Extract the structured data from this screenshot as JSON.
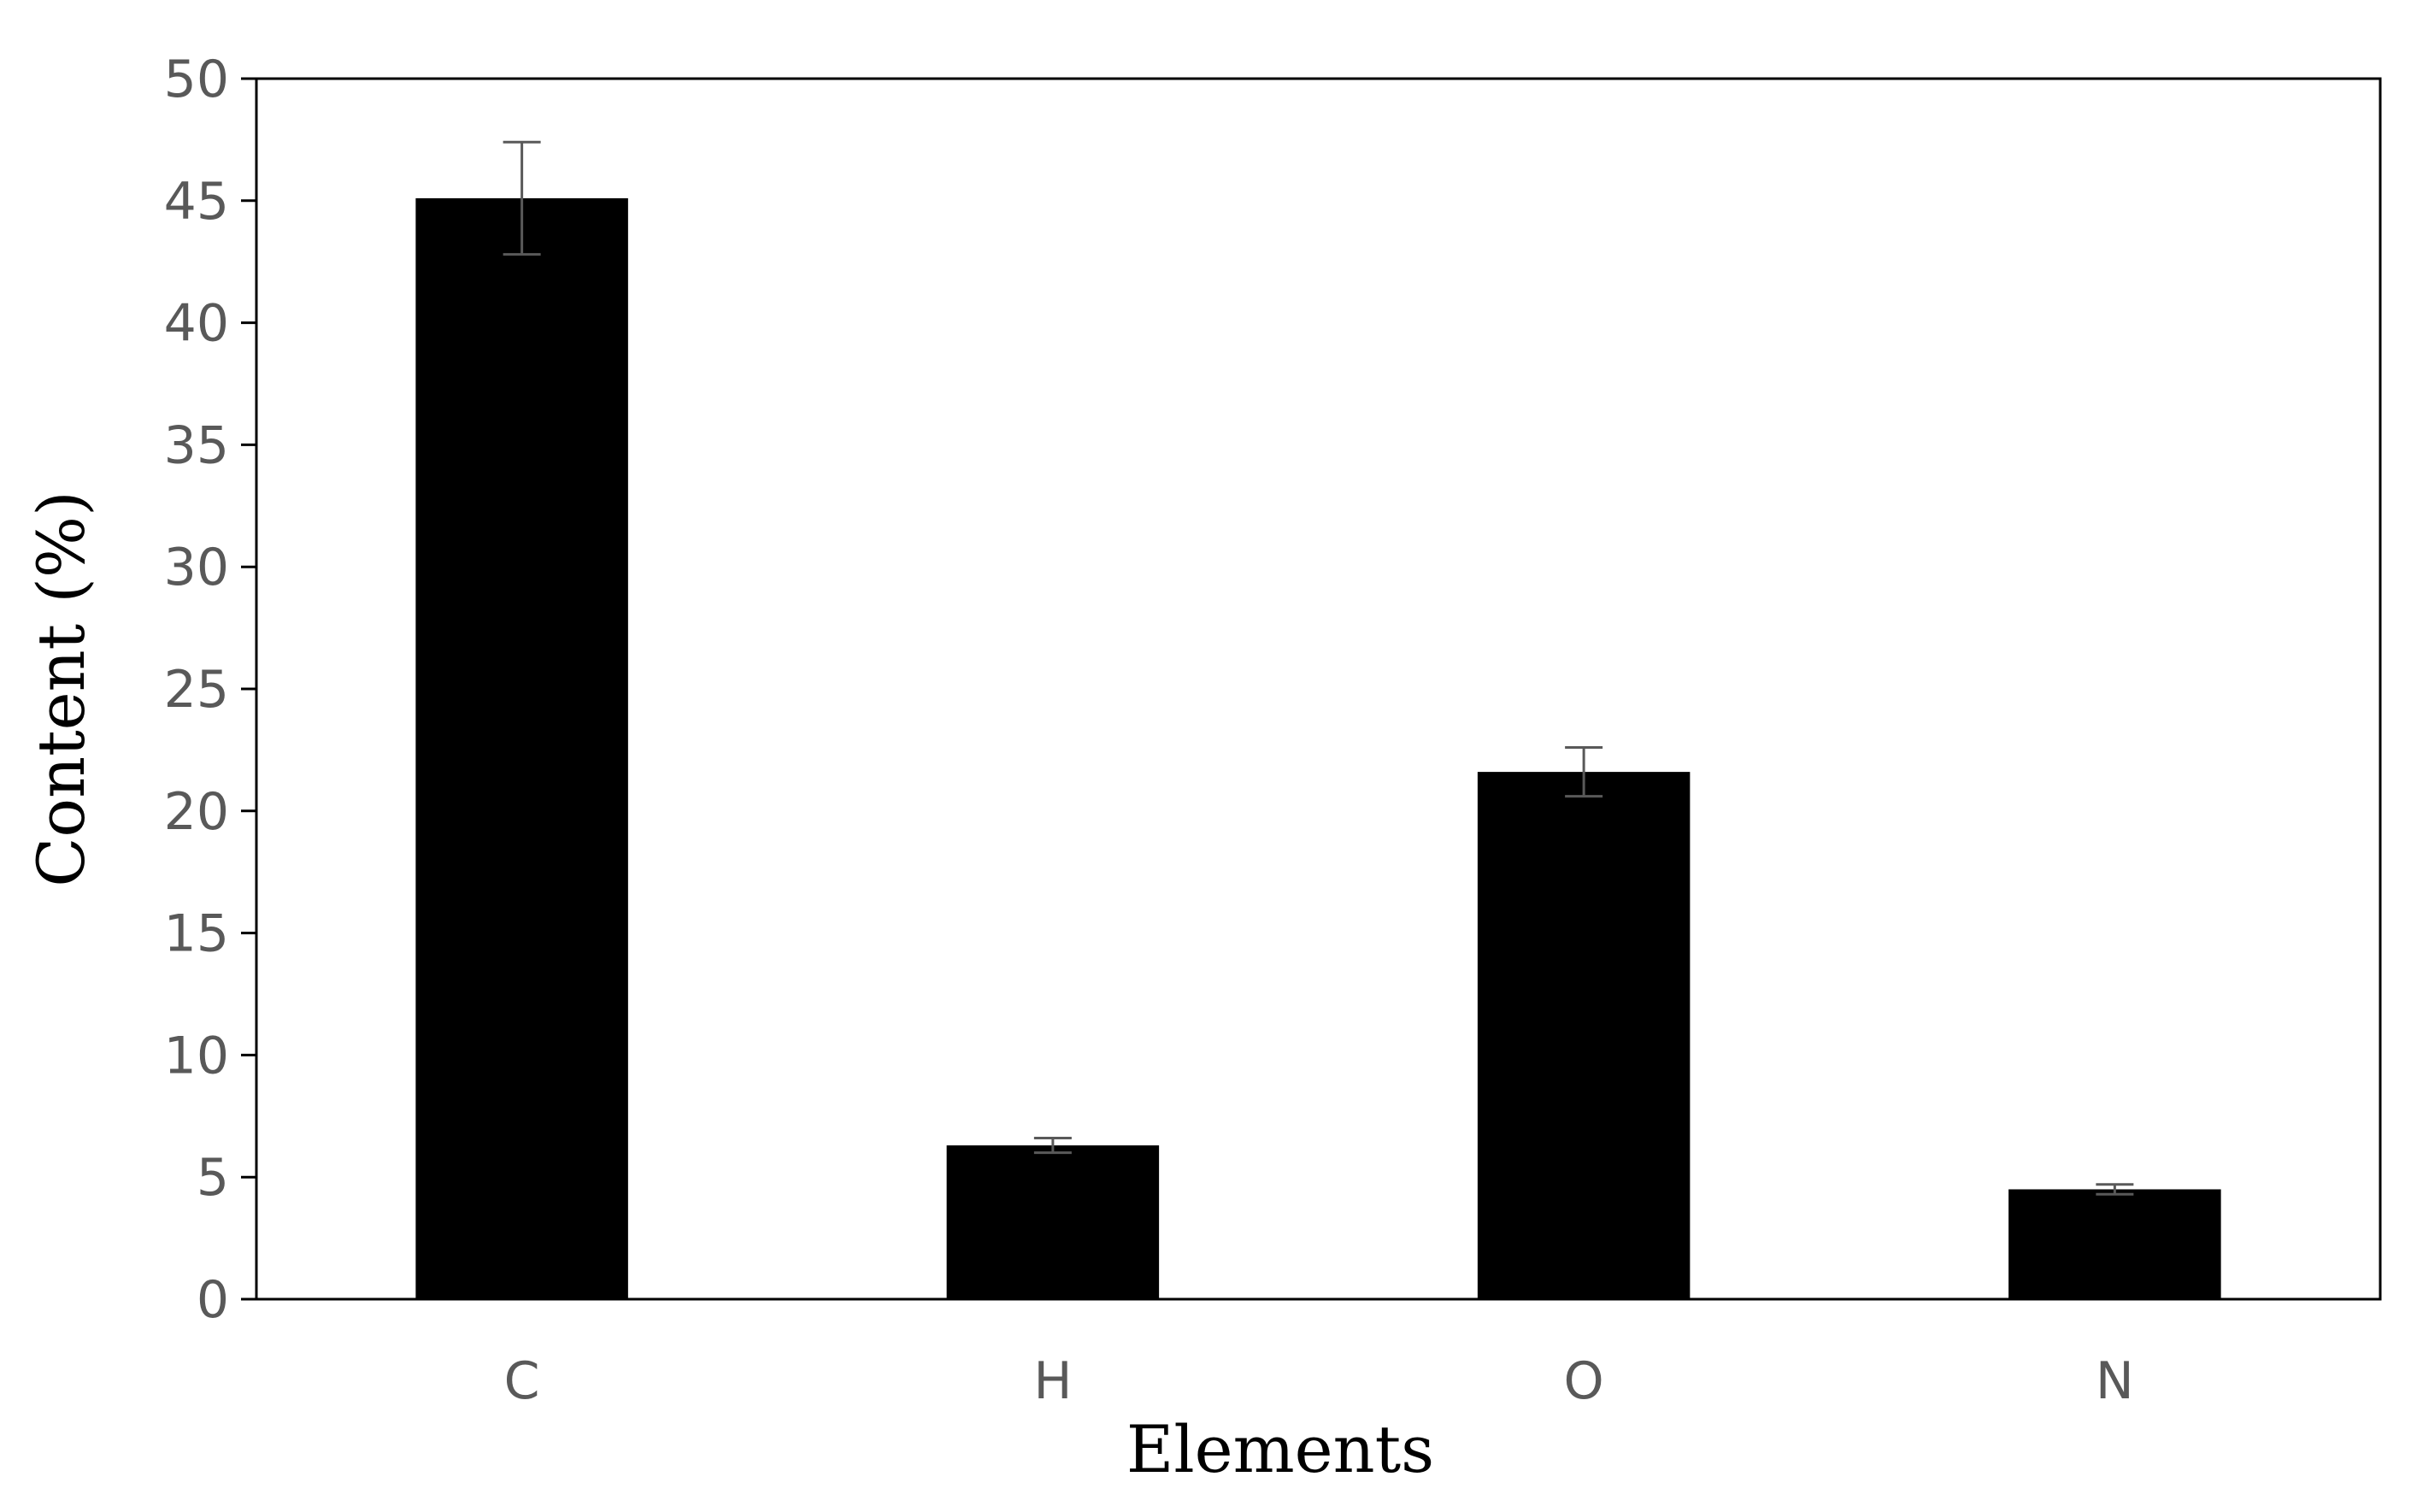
{
  "chart_data": {
    "type": "bar",
    "title": "",
    "xlabel": "Elements",
    "ylabel": "Content (%)",
    "categories": [
      "C",
      "H",
      "O",
      "N"
    ],
    "values": [
      45.1,
      6.3,
      21.6,
      4.5
    ],
    "errors": [
      2.3,
      0.3,
      1.0,
      0.2
    ],
    "ylim": [
      0,
      50
    ],
    "yticks": [
      0,
      5,
      10,
      15,
      20,
      25,
      30,
      35,
      40,
      45,
      50
    ],
    "grid": false,
    "legend": "none",
    "colors": {
      "bar": "#000000",
      "error_bar": "#595959",
      "tick_label": "#595959",
      "axis_line": "#000000"
    }
  }
}
